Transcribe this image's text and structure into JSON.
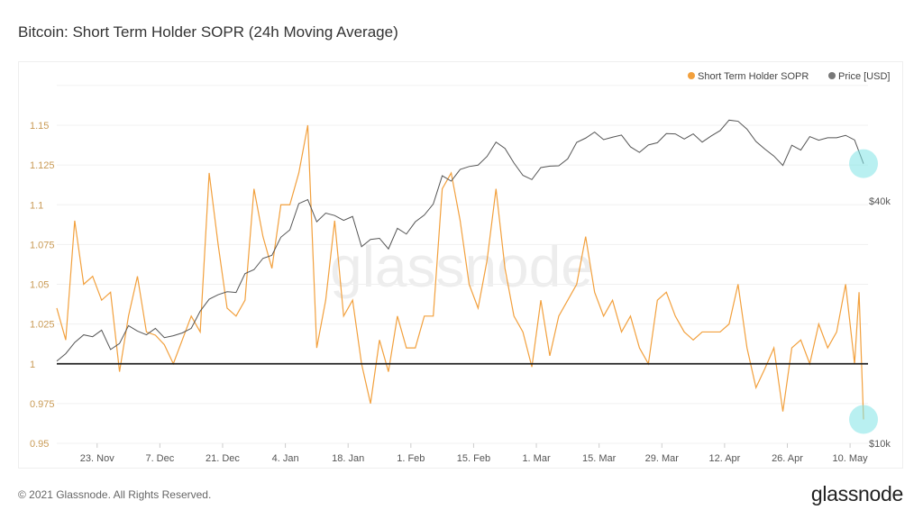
{
  "title": "Bitcoin: Short Term Holder SOPR (24h Moving Average)",
  "footer": "© 2021 Glassnode. All Rights Reserved.",
  "logo": "glassnode",
  "watermark": "glassnode",
  "colors": {
    "sopr": "#f2a03d",
    "price": "#555555",
    "baseline": "#222222",
    "highlight": "#7fe3e6",
    "axis_label": "#c99a55"
  },
  "chart_data": {
    "type": "line",
    "title": "Bitcoin: Short Term Holder SOPR (24h Moving Average)",
    "legend": {
      "placement": "top-right",
      "entries": [
        "Short Term Holder SOPR",
        "Price [USD]"
      ]
    },
    "grid": true,
    "x_range": [
      "2020-11-14",
      "2021-05-14"
    ],
    "x_ticks": [
      {
        "date": "2020-11-23",
        "label": "23. Nov"
      },
      {
        "date": "2020-12-07",
        "label": "7. Dec"
      },
      {
        "date": "2020-12-21",
        "label": "21. Dec"
      },
      {
        "date": "2021-01-04",
        "label": "4. Jan"
      },
      {
        "date": "2021-01-18",
        "label": "18. Jan"
      },
      {
        "date": "2021-02-01",
        "label": "1. Feb"
      },
      {
        "date": "2021-02-15",
        "label": "15. Feb"
      },
      {
        "date": "2021-03-01",
        "label": "1. Mar"
      },
      {
        "date": "2021-03-15",
        "label": "15. Mar"
      },
      {
        "date": "2021-03-29",
        "label": "29. Mar"
      },
      {
        "date": "2021-04-12",
        "label": "12. Apr"
      },
      {
        "date": "2021-04-26",
        "label": "26. Apr"
      },
      {
        "date": "2021-05-10",
        "label": "10. May"
      }
    ],
    "y_left": {
      "range": [
        0.95,
        1.175
      ],
      "ticks": [
        0.95,
        0.975,
        1,
        1.025,
        1.05,
        1.075,
        1.1,
        1.125,
        1.15
      ],
      "tick_labels": [
        "0.95",
        "0.975",
        "1",
        "1.025",
        "1.05",
        "1.075",
        "1.1",
        "1.125",
        "1.15"
      ]
    },
    "y_right": {
      "scale": "log",
      "ticks": [
        10000,
        40000
      ],
      "tick_labels": [
        "$10k",
        "$40k"
      ]
    },
    "reference_line": 1,
    "highlights": [
      {
        "series": "Price [USD]",
        "date": "2021-05-13"
      },
      {
        "series": "Short Term Holder SOPR",
        "date": "2021-05-13"
      }
    ],
    "series": [
      {
        "name": "Short Term Holder SOPR",
        "axis": "left",
        "points": [
          [
            "2020-11-14",
            1.035
          ],
          [
            "2020-11-16",
            1.015
          ],
          [
            "2020-11-18",
            1.09
          ],
          [
            "2020-11-20",
            1.05
          ],
          [
            "2020-11-22",
            1.055
          ],
          [
            "2020-11-24",
            1.04
          ],
          [
            "2020-11-26",
            1.045
          ],
          [
            "2020-11-28",
            0.995
          ],
          [
            "2020-11-30",
            1.03
          ],
          [
            "2020-12-02",
            1.055
          ],
          [
            "2020-12-04",
            1.02
          ],
          [
            "2020-12-06",
            1.018
          ],
          [
            "2020-12-08",
            1.012
          ],
          [
            "2020-12-10",
            1.0
          ],
          [
            "2020-12-12",
            1.015
          ],
          [
            "2020-12-14",
            1.03
          ],
          [
            "2020-12-16",
            1.02
          ],
          [
            "2020-12-18",
            1.12
          ],
          [
            "2020-12-20",
            1.075
          ],
          [
            "2020-12-22",
            1.035
          ],
          [
            "2020-12-24",
            1.03
          ],
          [
            "2020-12-26",
            1.04
          ],
          [
            "2020-12-28",
            1.11
          ],
          [
            "2020-12-30",
            1.08
          ],
          [
            "2021-01-01",
            1.06
          ],
          [
            "2021-01-03",
            1.1
          ],
          [
            "2021-01-05",
            1.1
          ],
          [
            "2021-01-07",
            1.12
          ],
          [
            "2021-01-09",
            1.15
          ],
          [
            "2021-01-11",
            1.01
          ],
          [
            "2021-01-13",
            1.04
          ],
          [
            "2021-01-15",
            1.09
          ],
          [
            "2021-01-17",
            1.03
          ],
          [
            "2021-01-19",
            1.04
          ],
          [
            "2021-01-21",
            1.0
          ],
          [
            "2021-01-23",
            0.975
          ],
          [
            "2021-01-25",
            1.015
          ],
          [
            "2021-01-27",
            0.995
          ],
          [
            "2021-01-29",
            1.03
          ],
          [
            "2021-01-31",
            1.01
          ],
          [
            "2021-02-02",
            1.01
          ],
          [
            "2021-02-04",
            1.03
          ],
          [
            "2021-02-06",
            1.03
          ],
          [
            "2021-02-08",
            1.11
          ],
          [
            "2021-02-10",
            1.12
          ],
          [
            "2021-02-12",
            1.09
          ],
          [
            "2021-02-14",
            1.05
          ],
          [
            "2021-02-16",
            1.035
          ],
          [
            "2021-02-18",
            1.065
          ],
          [
            "2021-02-20",
            1.11
          ],
          [
            "2021-02-22",
            1.06
          ],
          [
            "2021-02-24",
            1.03
          ],
          [
            "2021-02-26",
            1.02
          ],
          [
            "2021-02-28",
            0.998
          ],
          [
            "2021-03-02",
            1.04
          ],
          [
            "2021-03-04",
            1.005
          ],
          [
            "2021-03-06",
            1.03
          ],
          [
            "2021-03-08",
            1.04
          ],
          [
            "2021-03-10",
            1.05
          ],
          [
            "2021-03-12",
            1.08
          ],
          [
            "2021-03-14",
            1.045
          ],
          [
            "2021-03-16",
            1.03
          ],
          [
            "2021-03-18",
            1.04
          ],
          [
            "2021-03-20",
            1.02
          ],
          [
            "2021-03-22",
            1.03
          ],
          [
            "2021-03-24",
            1.01
          ],
          [
            "2021-03-26",
            1.0
          ],
          [
            "2021-03-28",
            1.04
          ],
          [
            "2021-03-30",
            1.045
          ],
          [
            "2021-04-01",
            1.03
          ],
          [
            "2021-04-03",
            1.02
          ],
          [
            "2021-04-05",
            1.015
          ],
          [
            "2021-04-07",
            1.02
          ],
          [
            "2021-04-09",
            1.02
          ],
          [
            "2021-04-11",
            1.02
          ],
          [
            "2021-04-13",
            1.025
          ],
          [
            "2021-04-15",
            1.05
          ],
          [
            "2021-04-17",
            1.01
          ],
          [
            "2021-04-19",
            0.985
          ],
          [
            "2021-04-21",
            0.997
          ],
          [
            "2021-04-23",
            1.01
          ],
          [
            "2021-04-25",
            0.97
          ],
          [
            "2021-04-27",
            1.01
          ],
          [
            "2021-04-29",
            1.015
          ],
          [
            "2021-05-01",
            1.0
          ],
          [
            "2021-05-03",
            1.025
          ],
          [
            "2021-05-05",
            1.01
          ],
          [
            "2021-05-07",
            1.02
          ],
          [
            "2021-05-09",
            1.05
          ],
          [
            "2021-05-11",
            1.0
          ],
          [
            "2021-05-12",
            1.045
          ],
          [
            "2021-05-13",
            0.965
          ]
        ]
      },
      {
        "name": "Price [USD]",
        "axis": "right",
        "points": [
          [
            "2020-11-14",
            16000
          ],
          [
            "2020-11-16",
            16700
          ],
          [
            "2020-11-18",
            17800
          ],
          [
            "2020-11-20",
            18600
          ],
          [
            "2020-11-22",
            18400
          ],
          [
            "2020-11-24",
            19100
          ],
          [
            "2020-11-26",
            17100
          ],
          [
            "2020-11-28",
            17700
          ],
          [
            "2020-11-30",
            19600
          ],
          [
            "2020-12-02",
            19000
          ],
          [
            "2020-12-04",
            18600
          ],
          [
            "2020-12-06",
            19300
          ],
          [
            "2020-12-08",
            18300
          ],
          [
            "2020-12-10",
            18500
          ],
          [
            "2020-12-12",
            18800
          ],
          [
            "2020-12-14",
            19300
          ],
          [
            "2020-12-16",
            21300
          ],
          [
            "2020-12-18",
            22800
          ],
          [
            "2020-12-20",
            23400
          ],
          [
            "2020-12-22",
            23800
          ],
          [
            "2020-12-24",
            23700
          ],
          [
            "2020-12-26",
            26400
          ],
          [
            "2020-12-28",
            27000
          ],
          [
            "2020-12-30",
            28800
          ],
          [
            "2021-01-01",
            29300
          ],
          [
            "2021-01-03",
            32500
          ],
          [
            "2021-01-05",
            33900
          ],
          [
            "2021-01-07",
            39400
          ],
          [
            "2021-01-09",
            40300
          ],
          [
            "2021-01-11",
            35500
          ],
          [
            "2021-01-13",
            37300
          ],
          [
            "2021-01-15",
            36800
          ],
          [
            "2021-01-17",
            35800
          ],
          [
            "2021-01-19",
            36600
          ],
          [
            "2021-01-21",
            30800
          ],
          [
            "2021-01-23",
            32100
          ],
          [
            "2021-01-25",
            32300
          ],
          [
            "2021-01-27",
            30400
          ],
          [
            "2021-01-29",
            34200
          ],
          [
            "2021-01-31",
            33100
          ],
          [
            "2021-02-02",
            35500
          ],
          [
            "2021-02-04",
            36900
          ],
          [
            "2021-02-06",
            39300
          ],
          [
            "2021-02-08",
            46200
          ],
          [
            "2021-02-10",
            44800
          ],
          [
            "2021-02-12",
            47900
          ],
          [
            "2021-02-14",
            48700
          ],
          [
            "2021-02-16",
            49100
          ],
          [
            "2021-02-18",
            51600
          ],
          [
            "2021-02-20",
            56000
          ],
          [
            "2021-02-22",
            54000
          ],
          [
            "2021-02-24",
            49700
          ],
          [
            "2021-02-26",
            46300
          ],
          [
            "2021-02-28",
            45200
          ],
          [
            "2021-03-02",
            48400
          ],
          [
            "2021-03-04",
            48800
          ],
          [
            "2021-03-06",
            48900
          ],
          [
            "2021-03-08",
            50900
          ],
          [
            "2021-03-10",
            55900
          ],
          [
            "2021-03-12",
            57300
          ],
          [
            "2021-03-14",
            59300
          ],
          [
            "2021-03-16",
            56800
          ],
          [
            "2021-03-18",
            57600
          ],
          [
            "2021-03-20",
            58300
          ],
          [
            "2021-03-22",
            54500
          ],
          [
            "2021-03-24",
            52800
          ],
          [
            "2021-03-26",
            55100
          ],
          [
            "2021-03-28",
            55800
          ],
          [
            "2021-03-30",
            58800
          ],
          [
            "2021-04-01",
            58700
          ],
          [
            "2021-04-03",
            57000
          ],
          [
            "2021-04-05",
            58700
          ],
          [
            "2021-04-07",
            56000
          ],
          [
            "2021-04-09",
            58000
          ],
          [
            "2021-04-11",
            59800
          ],
          [
            "2021-04-13",
            63500
          ],
          [
            "2021-04-15",
            63100
          ],
          [
            "2021-04-17",
            60300
          ],
          [
            "2021-04-19",
            56200
          ],
          [
            "2021-04-21",
            53800
          ],
          [
            "2021-04-23",
            51700
          ],
          [
            "2021-04-25",
            49000
          ],
          [
            "2021-04-27",
            55000
          ],
          [
            "2021-04-29",
            53500
          ],
          [
            "2021-05-01",
            57800
          ],
          [
            "2021-05-03",
            56600
          ],
          [
            "2021-05-05",
            57400
          ],
          [
            "2021-05-07",
            57400
          ],
          [
            "2021-05-09",
            58200
          ],
          [
            "2021-05-11",
            56700
          ],
          [
            "2021-05-13",
            49500
          ]
        ]
      }
    ]
  }
}
